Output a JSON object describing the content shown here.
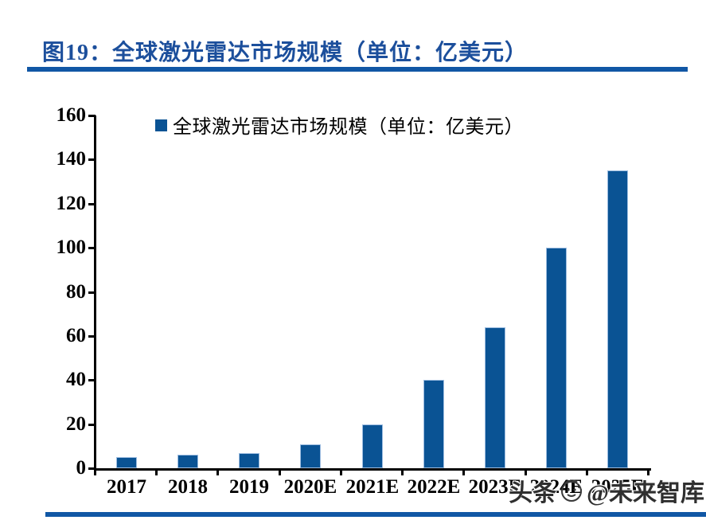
{
  "page": {
    "title": "图19：全球激光雷达市场规模（单位：亿美元）",
    "watermark": {
      "prefix": "头条",
      "suffix": "@未来智库"
    },
    "accent_color": "#1157A5",
    "title_color": "#1C4F9C"
  },
  "chart_data": {
    "type": "bar",
    "title": "图19：全球激光雷达市场规模（单位：亿美元）",
    "legend": [
      "全球激光雷达市场规模（单位：亿美元）"
    ],
    "legend_position": "top-center",
    "categories": [
      "2017",
      "2018",
      "2019",
      "2020E",
      "2021E",
      "2022E",
      "2023E",
      "2024E",
      "2025E"
    ],
    "values": [
      5,
      6,
      7,
      11,
      20,
      40,
      64,
      100,
      135
    ],
    "xlabel": "",
    "ylabel": "",
    "ylim": [
      0,
      160
    ],
    "yticks": [
      0,
      20,
      40,
      60,
      80,
      100,
      120,
      140,
      160
    ],
    "grid": false,
    "bar_color": "#0A5394",
    "bar_border_color": "#9CBCE0",
    "axis_color": "#000000"
  }
}
